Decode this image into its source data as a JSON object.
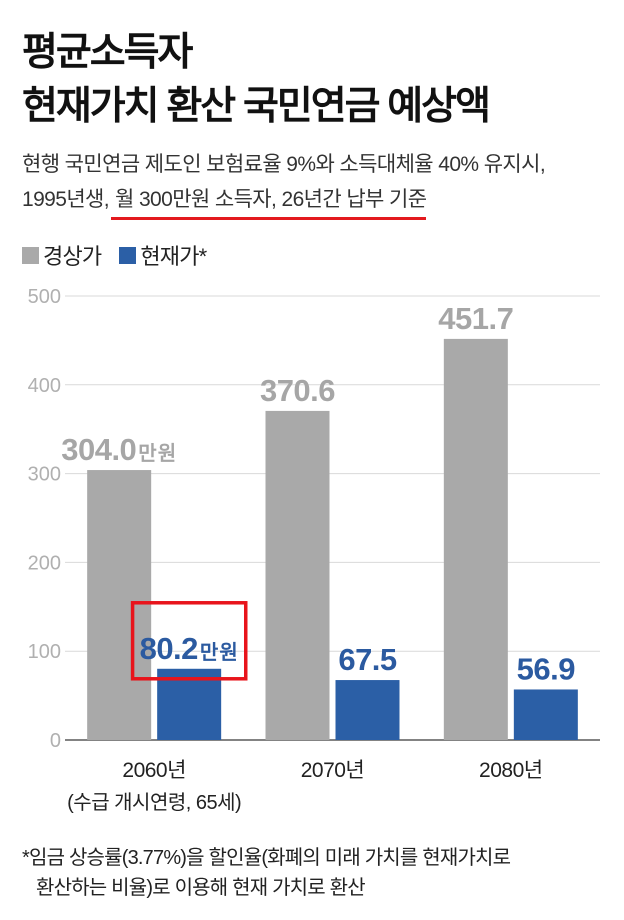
{
  "header": {
    "title_line1": "평균소득자",
    "title_line2": "현재가치 환산 국민연금 예상액",
    "subtitle_line1": "현행 국민연금 제도인 보험료율 9%와 소득대체율 40% 유지시,",
    "subtitle_line2_lead": "1995년생,",
    "subtitle_line2_emphasis": "월 300만원 소득자, 26년간 납부 기준"
  },
  "colors": {
    "emphasis_underline": "#e3191e",
    "grid": "#d9d9d9",
    "axis": "#5a5a5a",
    "tick_label": "#b0b0b0",
    "category_label": "#222222"
  },
  "chart_data": {
    "type": "bar",
    "categories": [
      "2060년",
      "2070년",
      "2080년"
    ],
    "category_note": {
      "index": 0,
      "text": "(수급 개시연령, 65세)"
    },
    "series": [
      {
        "name": "경상가",
        "values": [
          304.0,
          370.6,
          451.7
        ],
        "labels": [
          "304.0",
          "370.6",
          "451.7"
        ],
        "color": "#a9a9a9",
        "label_color": "#a6a6a6"
      },
      {
        "name": "현재가*",
        "values": [
          80.2,
          67.5,
          56.9
        ],
        "labels": [
          "80.2",
          "67.5",
          "56.9"
        ],
        "color": "#2b5fa6",
        "label_color": "#2b5aa0"
      }
    ],
    "label_unit": "만원",
    "label_unit_index": 0,
    "highlight": {
      "series": 1,
      "index": 0,
      "color": "#e8141b"
    },
    "yticks": [
      0,
      100,
      200,
      300,
      400,
      500
    ],
    "ylim": [
      0,
      500
    ],
    "grid": true,
    "legend": "top-left"
  },
  "footnote": {
    "line1": "*임금 상승률(3.77%)을 할인율(화폐의 미래 가치를 현재가치로",
    "line2": "환산하는 비율)로 이용해 현재 가치로 환산"
  }
}
